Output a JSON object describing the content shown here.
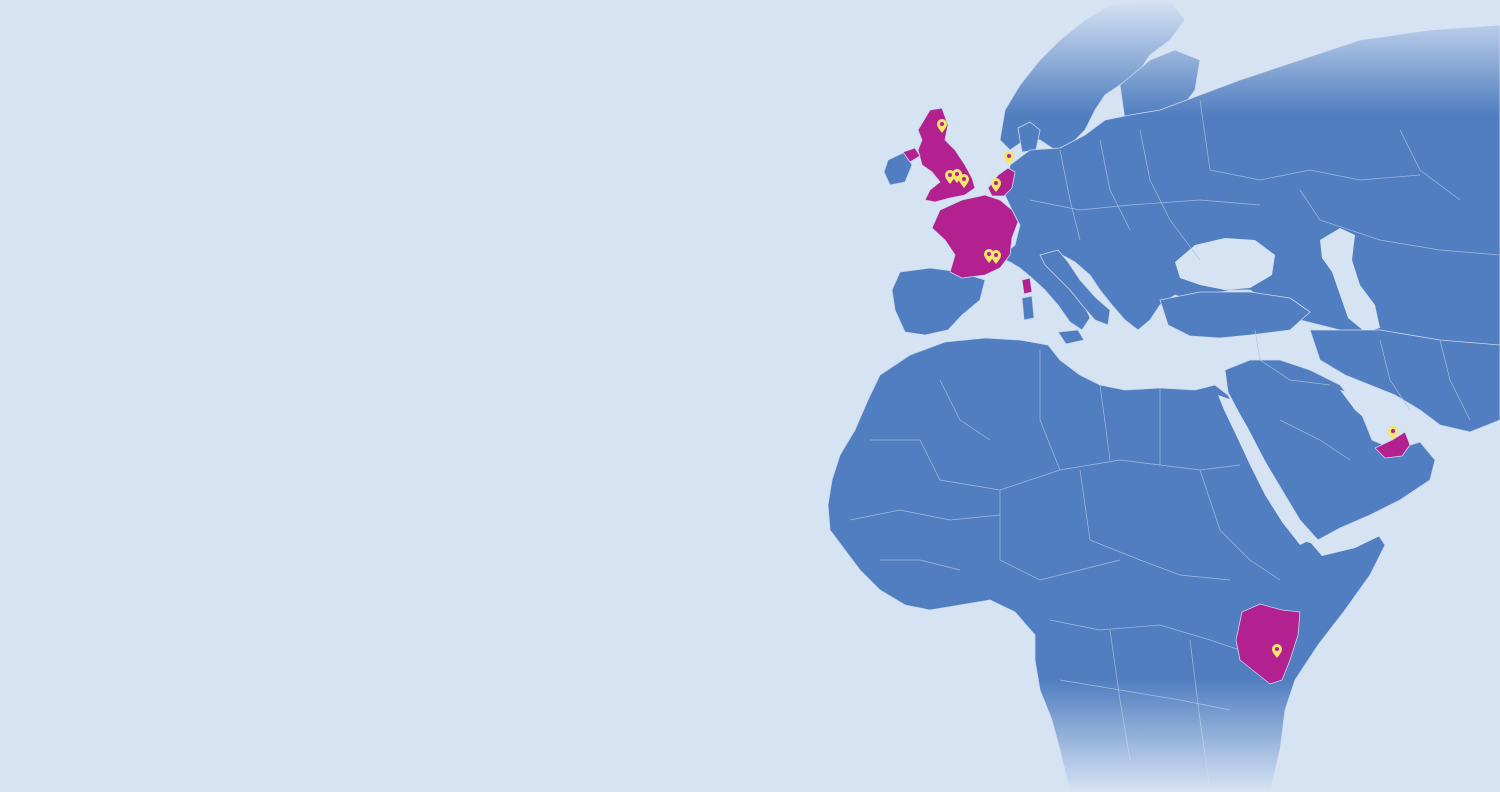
{
  "map": {
    "colors": {
      "water": "#d6e3f3",
      "land": "#517ec0",
      "highlight": "#b2218f",
      "pin": "#f3e66a",
      "border": "#a9c2e4"
    },
    "highlighted_countries": [
      "united-kingdom",
      "france",
      "netherlands",
      "united-arab-emirates",
      "kenya",
      "corsica"
    ],
    "markers": [
      {
        "name": "marker-edinburgh",
        "icon": "map-pin-icon",
        "country": "united-kingdom"
      },
      {
        "name": "marker-birmingham",
        "icon": "map-pin-icon",
        "country": "united-kingdom"
      },
      {
        "name": "marker-london-west",
        "icon": "map-pin-icon",
        "country": "united-kingdom"
      },
      {
        "name": "marker-london-east",
        "icon": "map-pin-icon",
        "country": "united-kingdom"
      },
      {
        "name": "marker-amsterdam",
        "icon": "map-pin-icon",
        "country": "netherlands"
      },
      {
        "name": "marker-brussels",
        "icon": "map-pin-icon",
        "country": "netherlands"
      },
      {
        "name": "marker-montpellier",
        "icon": "map-pin-icon",
        "country": "france"
      },
      {
        "name": "marker-marseille",
        "icon": "map-pin-icon",
        "country": "france"
      },
      {
        "name": "marker-dubai",
        "icon": "map-pin-icon",
        "country": "united-arab-emirates"
      },
      {
        "name": "marker-nairobi",
        "icon": "map-pin-icon",
        "country": "kenya"
      }
    ]
  }
}
